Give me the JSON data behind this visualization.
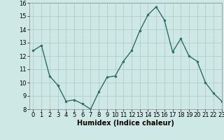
{
  "x": [
    0,
    1,
    2,
    3,
    4,
    5,
    6,
    7,
    8,
    9,
    10,
    11,
    12,
    13,
    14,
    15,
    16,
    17,
    18,
    19,
    20,
    21,
    22,
    23
  ],
  "y": [
    12.4,
    12.8,
    10.5,
    9.8,
    8.6,
    8.7,
    8.4,
    8.0,
    9.3,
    10.4,
    10.5,
    11.6,
    12.4,
    13.9,
    15.1,
    15.7,
    14.7,
    12.3,
    13.3,
    12.0,
    11.6,
    10.0,
    9.2,
    8.6
  ],
  "xlabel": "Humidex (Indice chaleur)",
  "ylim": [
    8,
    16
  ],
  "xlim": [
    -0.5,
    23
  ],
  "yticks": [
    8,
    9,
    10,
    11,
    12,
    13,
    14,
    15,
    16
  ],
  "xticks": [
    0,
    1,
    2,
    3,
    4,
    5,
    6,
    7,
    8,
    9,
    10,
    11,
    12,
    13,
    14,
    15,
    16,
    17,
    18,
    19,
    20,
    21,
    22,
    23
  ],
  "line_color": "#2d6e62",
  "marker_color": "#2d6e62",
  "bg_color": "#cde8e5",
  "grid_color": "#b0c8c6",
  "fig_bg": "#cde8e5",
  "tick_fontsize": 6,
  "xlabel_fontsize": 7
}
